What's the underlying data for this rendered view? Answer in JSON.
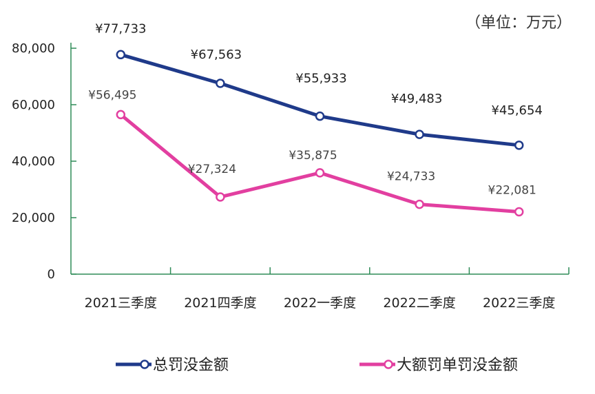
{
  "chart_data": {
    "type": "line",
    "unit_label": "（单位：万元）",
    "categories": [
      "2021三季度",
      "2021四季度",
      "2022一季度",
      "2022二季度",
      "2022三季度"
    ],
    "y_ticks": [
      "0",
      "20,000",
      "40,000",
      "60,000",
      "80,000"
    ],
    "ylim": [
      0,
      80000
    ],
    "legend_position": "bottom",
    "series": [
      {
        "name": "总罚没金额",
        "values": [
          77733,
          67563,
          55933,
          49483,
          45654
        ],
        "labels": [
          "¥77,733",
          "¥67,563",
          "¥55,933",
          "¥49,483",
          "¥45,654"
        ],
        "color": "#1f3a8a"
      },
      {
        "name": "大额罚单罚没金额",
        "values": [
          56495,
          27324,
          35875,
          24733,
          22081
        ],
        "labels": [
          "¥56,495",
          "¥27,324",
          "¥35,875",
          "¥24,733",
          "¥22,081"
        ],
        "color": "#e23fa0"
      }
    ]
  }
}
